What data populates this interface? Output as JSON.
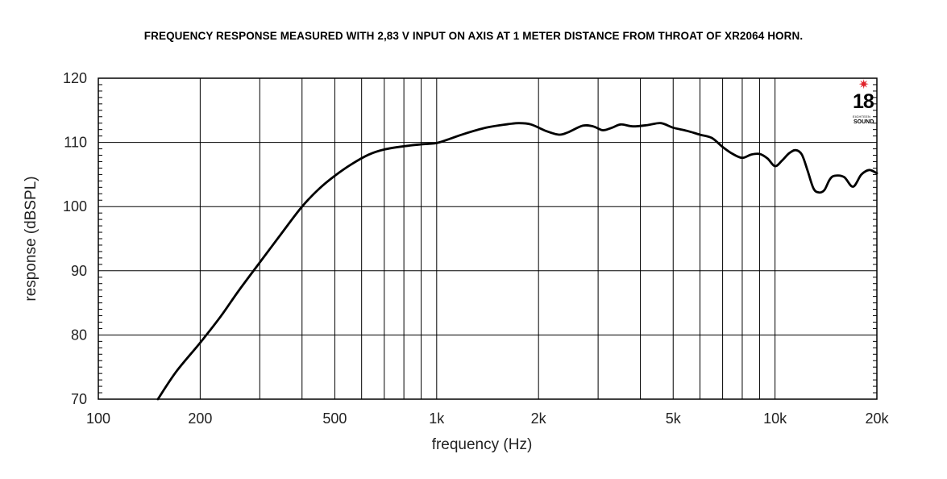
{
  "chart_data": {
    "type": "line",
    "title": "FREQUENCY RESPONSE MEASURED WITH 2,83 V INPUT ON AXIS AT 1 METER DISTANCE FROM THROAT OF XR2064 HORN.",
    "xlabel": "frequency (Hz)",
    "ylabel": "response (dBSPL)",
    "x_scale": "log",
    "xlim": [
      100,
      20000
    ],
    "ylim": [
      70,
      120
    ],
    "x_ticks": [
      {
        "value": 100,
        "label": "100"
      },
      {
        "value": 200,
        "label": "200"
      },
      {
        "value": 500,
        "label": "500"
      },
      {
        "value": 1000,
        "label": "1k"
      },
      {
        "value": 2000,
        "label": "2k"
      },
      {
        "value": 5000,
        "label": "5k"
      },
      {
        "value": 10000,
        "label": "10k"
      },
      {
        "value": 20000,
        "label": "20k"
      }
    ],
    "y_ticks": [
      {
        "value": 70,
        "label": "70"
      },
      {
        "value": 80,
        "label": "80"
      },
      {
        "value": 90,
        "label": "90"
      },
      {
        "value": 100,
        "label": "100"
      },
      {
        "value": 110,
        "label": "110"
      },
      {
        "value": 120,
        "label": "120"
      }
    ],
    "grid": true,
    "series": [
      {
        "x": [
          150,
          170,
          200,
          230,
          260,
          300,
          350,
          400,
          450,
          500,
          560,
          630,
          700,
          800,
          900,
          1000,
          1100,
          1200,
          1400,
          1600,
          1750,
          1900,
          2100,
          2300,
          2450,
          2700,
          2900,
          3100,
          3300,
          3500,
          3800,
          4200,
          4600,
          5000,
          5500,
          6000,
          6500,
          7000,
          7500,
          8000,
          8500,
          9000,
          9500,
          10000,
          10500,
          11000,
          11500,
          12000,
          12500,
          13000,
          13500,
          14000,
          14500,
          15000,
          16000,
          17000,
          18000,
          19000,
          20000
        ],
        "y": [
          70.0,
          74.3,
          78.8,
          82.9,
          86.9,
          91.3,
          96.0,
          100.0,
          102.8,
          104.8,
          106.6,
          108.1,
          108.9,
          109.4,
          109.7,
          109.9,
          110.6,
          111.3,
          112.3,
          112.8,
          113.0,
          112.8,
          111.8,
          111.2,
          111.6,
          112.6,
          112.5,
          111.9,
          112.3,
          112.8,
          112.5,
          112.7,
          113.0,
          112.3,
          111.8,
          111.2,
          110.7,
          109.3,
          108.2,
          107.6,
          108.1,
          108.2,
          107.5,
          106.3,
          107.2,
          108.3,
          108.8,
          108.1,
          105.5,
          102.8,
          102.2,
          102.6,
          104.2,
          104.8,
          104.6,
          103.1,
          105.0,
          105.7,
          105.2
        ]
      }
    ]
  },
  "logo": {
    "star": "✷",
    "number": "18",
    "subtext": "EIGHTEEN",
    "word": "SOUND"
  }
}
